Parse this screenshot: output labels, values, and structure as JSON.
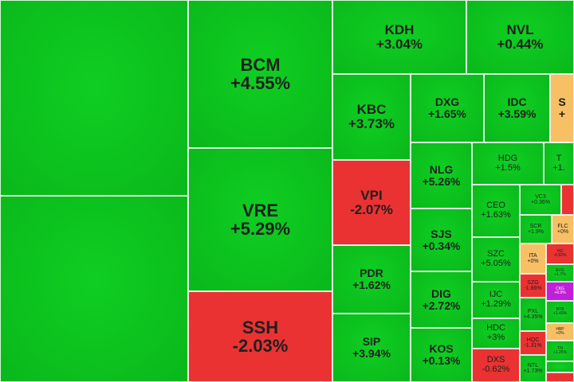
{
  "chart_data": {
    "type": "treemap",
    "colors": {
      "up": "#0fce22",
      "up_dark": "#0ab81b",
      "down": "#ea3232",
      "flat": "#f7c064",
      "ceiling": "#c020d8"
    },
    "items": [
      {
        "ticker": "",
        "change": "",
        "status": "up"
      },
      {
        "ticker": "",
        "change": "",
        "status": "up"
      },
      {
        "ticker": "BCM",
        "change": "+4.55%",
        "status": "up"
      },
      {
        "ticker": "VRE",
        "change": "+5.29%",
        "status": "up"
      },
      {
        "ticker": "SSH",
        "change": "-2.03%",
        "status": "down"
      },
      {
        "ticker": "KDH",
        "change": "+3.04%",
        "status": "up"
      },
      {
        "ticker": "NVL",
        "change": "+0.44%",
        "status": "up"
      },
      {
        "ticker": "KBC",
        "change": "+3.73%",
        "status": "up"
      },
      {
        "ticker": "DXG",
        "change": "+1.65%",
        "status": "up"
      },
      {
        "ticker": "IDC",
        "change": "+3.59%",
        "status": "up"
      },
      {
        "ticker": "S",
        "change": "+",
        "status": "flat"
      },
      {
        "ticker": "VPI",
        "change": "-2.07%",
        "status": "down"
      },
      {
        "ticker": "PDR",
        "change": "+1.62%",
        "status": "up"
      },
      {
        "ticker": "SIP",
        "change": "+3.94%",
        "status": "up"
      },
      {
        "ticker": "NLG",
        "change": "+5.26%",
        "status": "up"
      },
      {
        "ticker": "SJS",
        "change": "+0.34%",
        "status": "up"
      },
      {
        "ticker": "DIG",
        "change": "+2.72%",
        "status": "up"
      },
      {
        "ticker": "KOS",
        "change": "+0.13%",
        "status": "up"
      },
      {
        "ticker": "HDG",
        "change": "+1.5%",
        "status": "up"
      },
      {
        "ticker": "T",
        "change": "+1.",
        "status": "up"
      },
      {
        "ticker": "CEO",
        "change": "+1.63%",
        "status": "up"
      },
      {
        "ticker": "SZC",
        "change": "+5.05%",
        "status": "up"
      },
      {
        "ticker": "IJC",
        "change": "+1.29%",
        "status": "up"
      },
      {
        "ticker": "HDC",
        "change": "+3%",
        "status": "up"
      },
      {
        "ticker": "DXS",
        "change": "-0.62%",
        "status": "down"
      },
      {
        "ticker": "VC3",
        "change": "+0.36%",
        "status": "up"
      },
      {
        "ticker": "",
        "change": "",
        "status": "down"
      },
      {
        "ticker": "SCR",
        "change": "+1.9%",
        "status": "up"
      },
      {
        "ticker": "FLC",
        "change": "+0%",
        "status": "flat"
      },
      {
        "ticker": "ITA",
        "change": "+0%",
        "status": "flat"
      },
      {
        "ticker": "HD",
        "change": "-6.92%",
        "status": "down"
      },
      {
        "ticker": "SZG",
        "change": "-1.86%",
        "status": "down"
      },
      {
        "ticker": "EVG",
        "change": "+1.7%",
        "status": "up"
      },
      {
        "ticker": "CKG",
        "change": "+6.9%",
        "status": "ceiling"
      },
      {
        "ticker": "PXL",
        "change": "+4.35%",
        "status": "up"
      },
      {
        "ticker": "NTB",
        "change": "+1.43%",
        "status": "up"
      },
      {
        "ticker": "HQC",
        "change": "-1.31%",
        "status": "down"
      },
      {
        "ticker": "HBP",
        "change": "+0%",
        "status": "flat"
      },
      {
        "ticker": "NTL",
        "change": "+1.73%",
        "status": "up"
      },
      {
        "ticker": "TN",
        "change": "+1.25%",
        "status": "up"
      },
      {
        "ticker": "",
        "change": "",
        "status": "up"
      },
      {
        "ticker": "",
        "change": "",
        "status": "down"
      }
    ]
  }
}
